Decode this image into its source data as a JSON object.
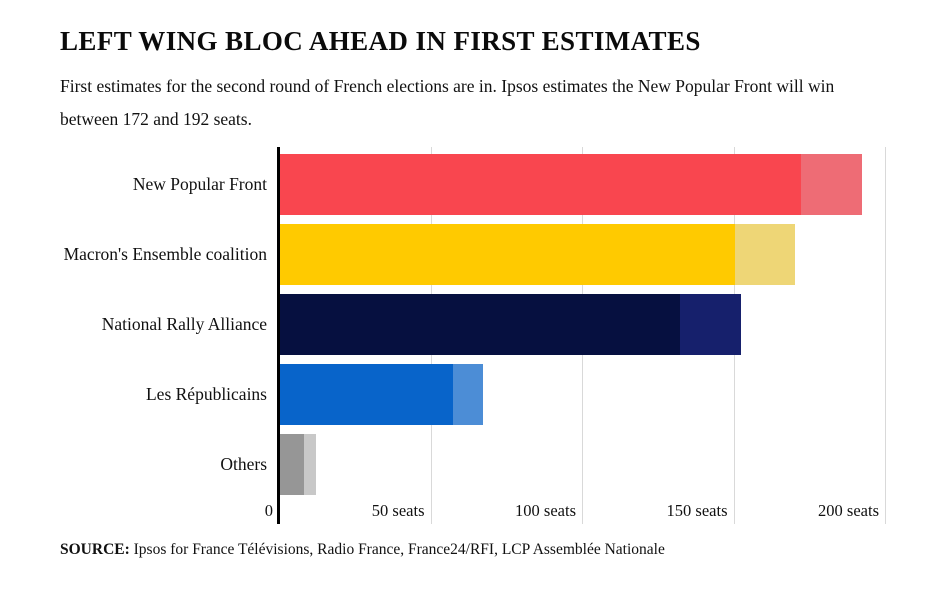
{
  "title": "LEFT WING BLOC AHEAD IN FIRST ESTIMATES",
  "subtitle": "First estimates for the second round of French elections are in. Ipsos estimates the New Popular Front will win between 172 and 192 seats.",
  "source": {
    "label": "SOURCE:",
    "text": " Ipsos for France Télévisions, Radio France, France24/RFI, LCP Assemblée Nationale"
  },
  "chart_data": {
    "type": "bar",
    "orientation": "horizontal",
    "title": "LEFT WING BLOC AHEAD IN FIRST ESTIMATES",
    "unit": "seats",
    "categories": [
      "New Popular Front",
      "Macron's Ensemble coalition",
      "National Rally Alliance",
      "Les Républicains",
      "Others"
    ],
    "series": [
      {
        "name": "estimate minimum",
        "values": [
          172,
          150,
          132,
          57,
          8
        ]
      },
      {
        "name": "estimate maximum",
        "values": [
          192,
          170,
          152,
          67,
          12
        ]
      }
    ],
    "bar_colors": [
      "#f9464f",
      "#ffca00",
      "#061040",
      "#0864ca",
      "#969696"
    ],
    "range_colors": [
      "#ee6c75",
      "#eed676",
      "#16206c",
      "#4c8dd6",
      "#c8c8c8"
    ],
    "x_ticks": [
      {
        "value": 0,
        "label": "0"
      },
      {
        "value": 50,
        "label": "50 seats"
      },
      {
        "value": 100,
        "label": "100 seats"
      },
      {
        "value": 150,
        "label": "150 seats"
      },
      {
        "value": 200,
        "label": "200 seats"
      }
    ],
    "xlim": [
      0,
      200
    ],
    "grid": true,
    "legend": false,
    "gridline_color": "#d9d9d9"
  }
}
